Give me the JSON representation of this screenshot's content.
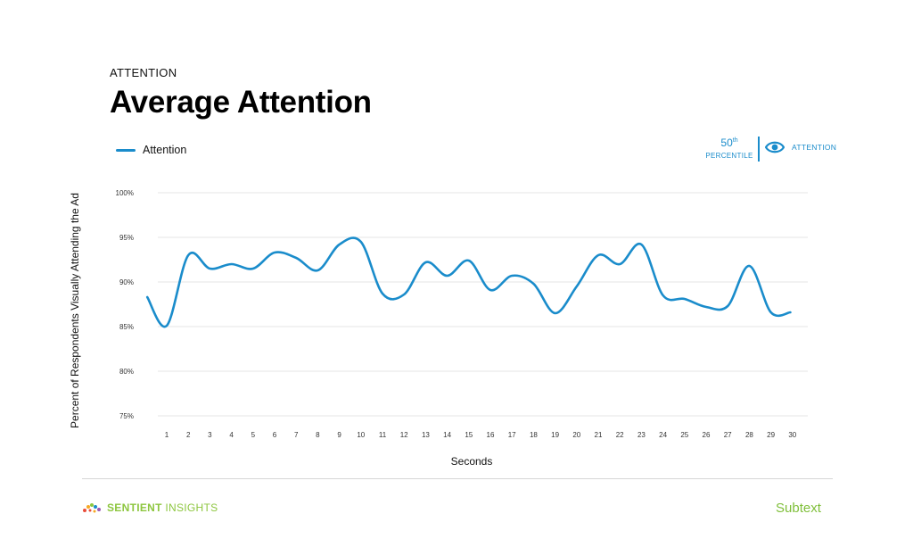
{
  "header": {
    "eyebrow": "ATTENTION",
    "title": "Average Attention"
  },
  "badge": {
    "number": "50",
    "suffix": "th",
    "word": "PERCENTILE",
    "label": "ATTENTION",
    "icon": "eye-icon"
  },
  "colors": {
    "accent": "#1a8ccb",
    "grid": "#e6e6e6",
    "text": "#111111",
    "brand_green": "#8dc63f"
  },
  "footer": {
    "left_brand_part1": "SENTIENT",
    "left_brand_part2": "INSIGHTS",
    "right_brand": "Subtext"
  },
  "chart_data": {
    "type": "line",
    "title": "Average Attention",
    "xlabel": "Seconds",
    "ylabel": "Percent of Respondents Visually Attending the Ad",
    "ylim": [
      75,
      100
    ],
    "yticks": [
      100,
      95,
      90,
      85,
      80,
      75
    ],
    "ytick_labels": [
      "100%",
      "95%",
      "90%",
      "85%",
      "80%",
      "75%"
    ],
    "xticks": [
      1,
      2,
      3,
      4,
      5,
      6,
      7,
      8,
      9,
      10,
      11,
      12,
      13,
      14,
      15,
      16,
      17,
      18,
      19,
      20,
      21,
      22,
      23,
      24,
      25,
      26,
      27,
      28,
      29,
      30
    ],
    "grid": true,
    "legend_position": "top-left",
    "series": [
      {
        "name": "Attention",
        "color": "#1a8ccb",
        "x": [
          0.1,
          1,
          2,
          3,
          4,
          5,
          6,
          7,
          8,
          9,
          10,
          11,
          12,
          13,
          14,
          15,
          16,
          17,
          18,
          19,
          20,
          21,
          22,
          23,
          24,
          25,
          26,
          27,
          28,
          29,
          29.9
        ],
        "values": [
          88.3,
          85.1,
          93.0,
          91.5,
          92.0,
          91.5,
          93.3,
          92.7,
          91.3,
          94.2,
          94.5,
          88.7,
          88.6,
          92.2,
          90.7,
          92.4,
          89.1,
          90.7,
          89.8,
          86.5,
          89.5,
          93.0,
          92.0,
          94.2,
          88.5,
          88.1,
          87.2,
          87.3,
          91.8,
          86.6,
          86.6
        ]
      }
    ]
  }
}
